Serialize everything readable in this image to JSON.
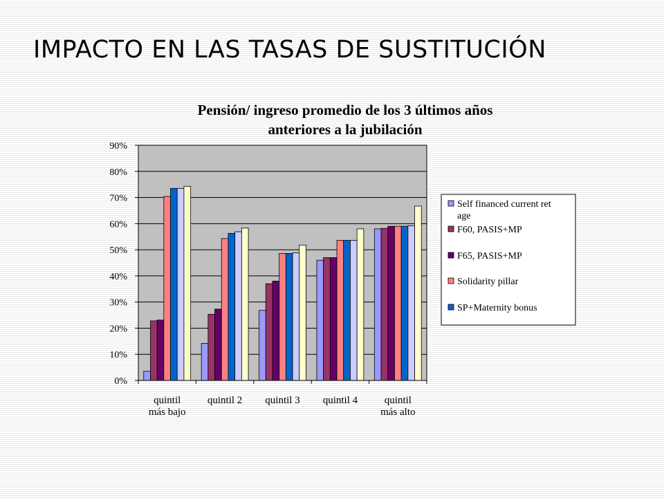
{
  "slide": {
    "title": "IMPACTO EN LAS TASAS DE SUSTITUCIÓN"
  },
  "chart_data": {
    "type": "bar",
    "title": "Pensión/ ingreso promedio de los 3 últimos años anteriores a la jubilación",
    "title_lines": [
      "Pensión/ ingreso promedio de los 3 últimos años",
      "anteriores a la jubilación"
    ],
    "xlabel": "",
    "ylabel": "",
    "ylim": [
      0,
      90
    ],
    "yticks": [
      "0%",
      "10%",
      "20%",
      "30%",
      "40%",
      "50%",
      "60%",
      "70%",
      "80%",
      "90%"
    ],
    "grid": true,
    "legend_position": "right",
    "categories": [
      [
        "quintil",
        "más bajo"
      ],
      [
        "quintil 2"
      ],
      [
        "quintil 3"
      ],
      [
        "quintil 4"
      ],
      [
        "quintil",
        "más alto"
      ]
    ],
    "series": [
      {
        "name": "Self financed current ret age",
        "legend_lines": [
          "Self financed current ret",
          "age"
        ],
        "color": "#9999ff",
        "values": [
          3.5,
          14.2,
          26.8,
          46.0,
          58.0
        ]
      },
      {
        "name": "F60, PASIS+MP",
        "legend_lines": [
          "F60, PASIS+MP"
        ],
        "color": "#993366",
        "values": [
          22.8,
          25.3,
          37.0,
          47.0,
          58.2
        ]
      },
      {
        "name": "F65, PASIS+MP",
        "legend_lines": [
          "F65, PASIS+MP"
        ],
        "color": "#660066",
        "values": [
          23.1,
          27.3,
          38.0,
          47.0,
          59.0
        ]
      },
      {
        "name": "Solidarity pillar",
        "legend_lines": [
          "Solidarity pillar"
        ],
        "color": "#ff8080",
        "values": [
          70.4,
          54.3,
          48.6,
          53.6,
          59.0
        ]
      },
      {
        "name": "SP+Maternity bonus",
        "legend_lines": [
          "SP+Maternity bonus"
        ],
        "color": "#0066cc",
        "values": [
          73.5,
          56.3,
          48.6,
          53.6,
          59.0
        ]
      },
      {
        "name": "",
        "legend_lines": [],
        "color": "#ccccff",
        "values": [
          73.5,
          56.9,
          48.8,
          53.6,
          59.2
        ]
      },
      {
        "name": "",
        "legend_lines": [],
        "color": "#ffffcc",
        "values": [
          74.3,
          58.3,
          51.8,
          58.0,
          66.7
        ]
      }
    ]
  }
}
